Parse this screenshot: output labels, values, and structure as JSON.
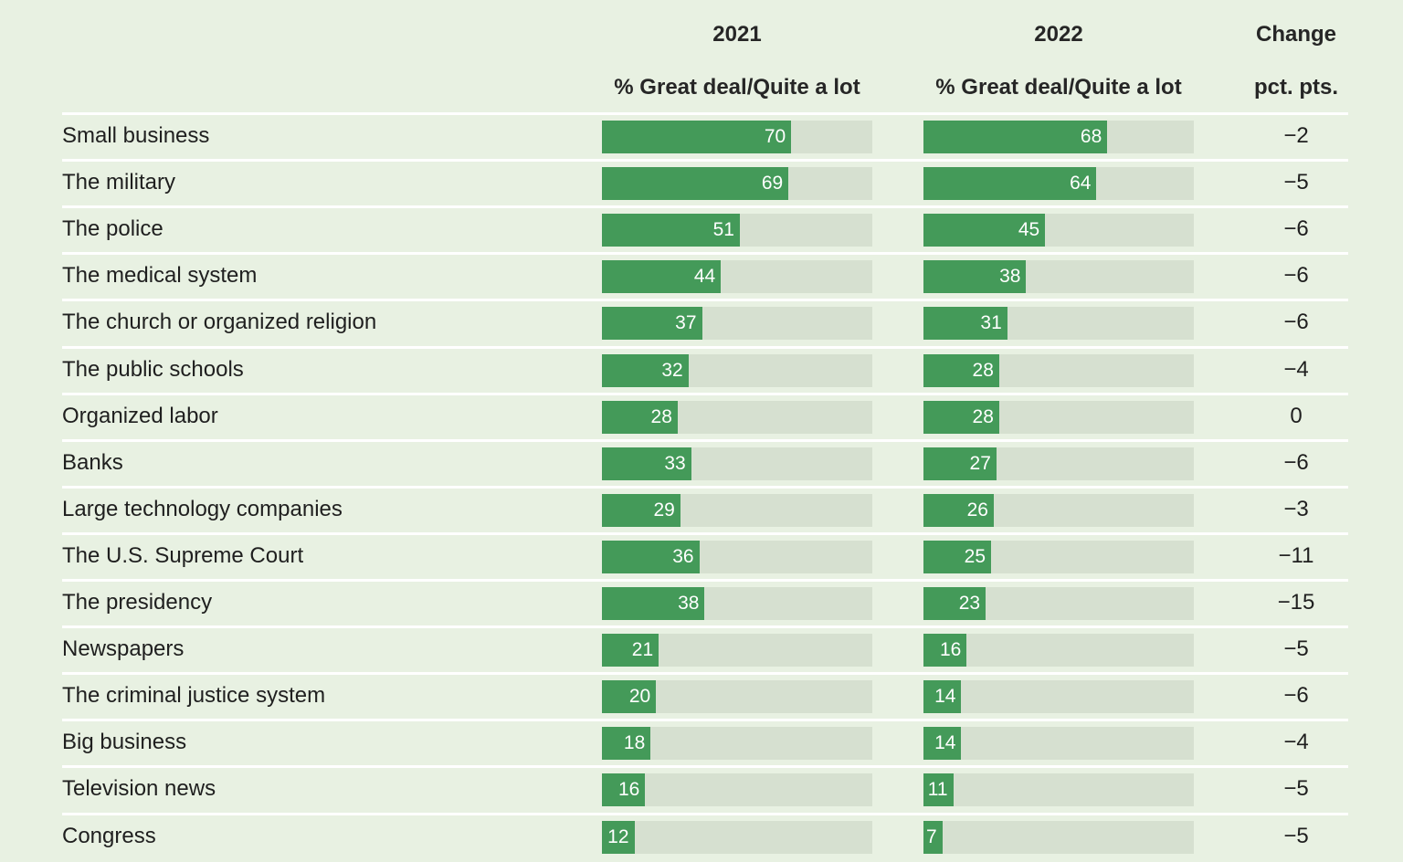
{
  "chart_data": {
    "type": "bar",
    "title": "",
    "column_headers": {
      "year_2021": "2021",
      "year_2022": "2022",
      "change": "Change",
      "metric_2021": "% Great deal/Quite a lot",
      "metric_2022": "% Great deal/Quite a lot",
      "change_unit": "pct. pts."
    },
    "xlim": [
      0,
      100
    ],
    "categories": [
      "Small business",
      "The military",
      "The police",
      "The medical system",
      "The church or organized religion",
      "The public schools",
      "Organized labor",
      "Banks",
      "Large technology companies",
      "The U.S. Supreme Court",
      "The presidency",
      "Newspapers",
      "The criminal justice system",
      "Big business",
      "Television news",
      "Congress"
    ],
    "series": [
      {
        "name": "2021",
        "values": [
          70,
          69,
          51,
          44,
          37,
          32,
          28,
          33,
          29,
          36,
          38,
          21,
          20,
          18,
          16,
          12
        ]
      },
      {
        "name": "2022",
        "values": [
          68,
          64,
          45,
          38,
          31,
          28,
          28,
          27,
          26,
          25,
          23,
          16,
          14,
          14,
          11,
          7
        ]
      }
    ],
    "change": [
      "−2",
      "−5",
      "−6",
      "−6",
      "−6",
      "−4",
      "0",
      "−6",
      "−3",
      "−11",
      "−15",
      "−5",
      "−6",
      "−4",
      "−5",
      "−5"
    ]
  },
  "colors": {
    "background": "#e8f1e2",
    "bar": "#449a59",
    "track": "#d6e0d0",
    "separator": "#ffffff"
  }
}
